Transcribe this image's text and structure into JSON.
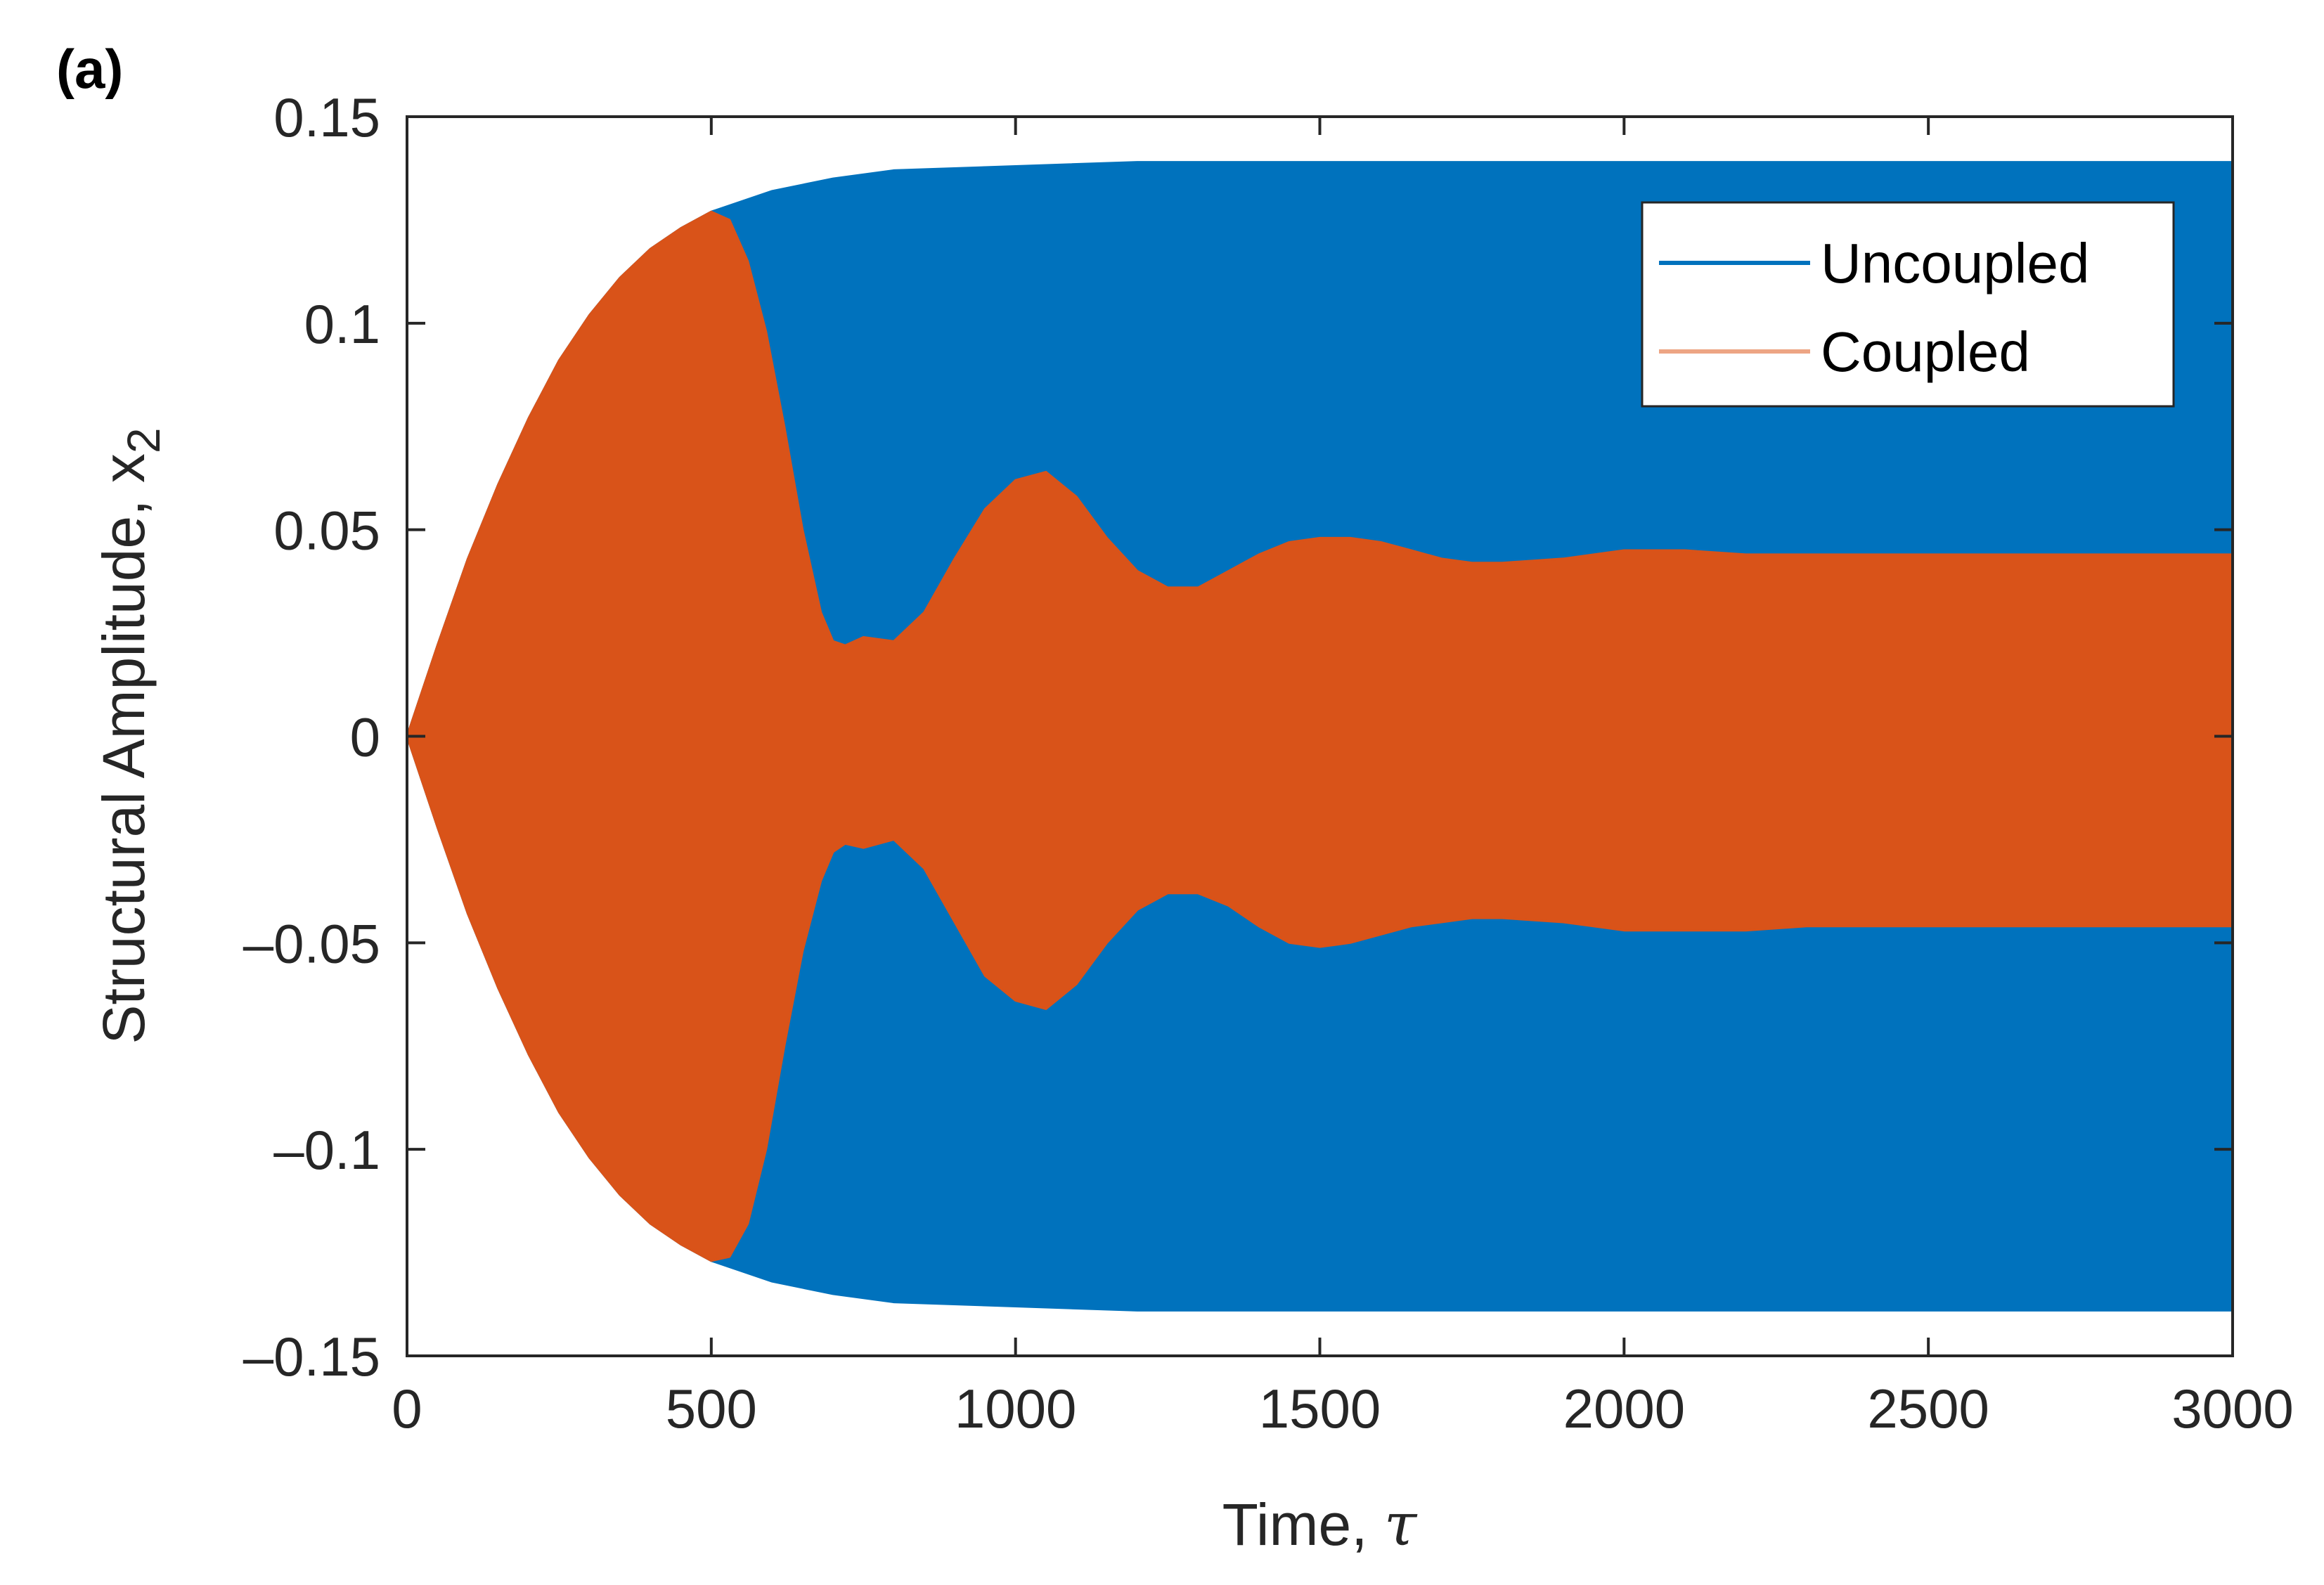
{
  "panel_label": "(a)",
  "chart_data": {
    "type": "area",
    "title": "",
    "xlabel": "Time, ",
    "xlabel_symbol": "τ",
    "ylabel": "Structural Amplitude, x",
    "ylabel_subscript": "2",
    "xlim": [
      0,
      3000
    ],
    "ylim": [
      -0.15,
      0.15
    ],
    "x_ticks": [
      0,
      500,
      1000,
      1500,
      2000,
      2500,
      3000
    ],
    "x_tick_labels": [
      "0",
      "500",
      "1000",
      "1500",
      "2000",
      "2500",
      "3000"
    ],
    "y_ticks": [
      -0.15,
      -0.1,
      -0.05,
      0,
      0.05,
      0.1,
      0.15
    ],
    "y_tick_labels": [
      "–0.15",
      "–0.1",
      "–0.05",
      "0",
      "0.05",
      "0.1",
      "0.15"
    ],
    "grid": false,
    "legend_position": "top-right",
    "series": [
      {
        "name": "Uncoupled",
        "color": "#0072BD",
        "legend_color": "#0072BD",
        "x": [
          0,
          50,
          100,
          150,
          200,
          250,
          300,
          350,
          400,
          450,
          500,
          600,
          700,
          800,
          1000,
          1200,
          1500,
          2000,
          2500,
          3000
        ],
        "upper": [
          0,
          0.022,
          0.043,
          0.061,
          0.077,
          0.091,
          0.102,
          0.111,
          0.118,
          0.123,
          0.127,
          0.132,
          0.135,
          0.137,
          0.138,
          0.139,
          0.139,
          0.139,
          0.139,
          0.139
        ],
        "lower": [
          0,
          -0.022,
          -0.043,
          -0.061,
          -0.077,
          -0.091,
          -0.102,
          -0.111,
          -0.118,
          -0.123,
          -0.127,
          -0.132,
          -0.135,
          -0.137,
          -0.138,
          -0.139,
          -0.139,
          -0.139,
          -0.139,
          -0.139
        ]
      },
      {
        "name": "Coupled",
        "color": "#D95319",
        "legend_color": "#EDA584",
        "x": [
          0,
          50,
          100,
          150,
          200,
          250,
          300,
          350,
          400,
          450,
          500,
          530,
          560,
          590,
          620,
          650,
          680,
          700,
          720,
          750,
          800,
          850,
          900,
          950,
          1000,
          1050,
          1100,
          1150,
          1200,
          1250,
          1300,
          1350,
          1400,
          1450,
          1500,
          1550,
          1600,
          1650,
          1700,
          1750,
          1800,
          1900,
          2000,
          2100,
          2200,
          2300,
          2400,
          2500,
          2600,
          2700,
          2800,
          2900,
          3000
        ],
        "upper": [
          0,
          0.022,
          0.043,
          0.061,
          0.077,
          0.091,
          0.102,
          0.111,
          0.118,
          0.123,
          0.127,
          0.125,
          0.115,
          0.098,
          0.075,
          0.05,
          0.03,
          0.023,
          0.022,
          0.024,
          0.023,
          0.03,
          0.043,
          0.055,
          0.062,
          0.064,
          0.058,
          0.048,
          0.04,
          0.036,
          0.036,
          0.04,
          0.044,
          0.047,
          0.048,
          0.048,
          0.047,
          0.045,
          0.043,
          0.042,
          0.042,
          0.043,
          0.045,
          0.045,
          0.044,
          0.044,
          0.044,
          0.044,
          0.044,
          0.044,
          0.044,
          0.044,
          0.044
        ],
        "lower": [
          0,
          -0.022,
          -0.043,
          -0.061,
          -0.077,
          -0.091,
          -0.102,
          -0.111,
          -0.118,
          -0.123,
          -0.127,
          -0.126,
          -0.118,
          -0.1,
          -0.075,
          -0.052,
          -0.035,
          -0.028,
          -0.026,
          -0.027,
          -0.025,
          -0.032,
          -0.045,
          -0.058,
          -0.064,
          -0.066,
          -0.06,
          -0.05,
          -0.042,
          -0.038,
          -0.038,
          -0.041,
          -0.046,
          -0.05,
          -0.051,
          -0.05,
          -0.048,
          -0.046,
          -0.045,
          -0.044,
          -0.044,
          -0.045,
          -0.047,
          -0.047,
          -0.047,
          -0.046,
          -0.046,
          -0.046,
          -0.046,
          -0.046,
          -0.046,
          -0.046,
          -0.046
        ]
      }
    ]
  }
}
